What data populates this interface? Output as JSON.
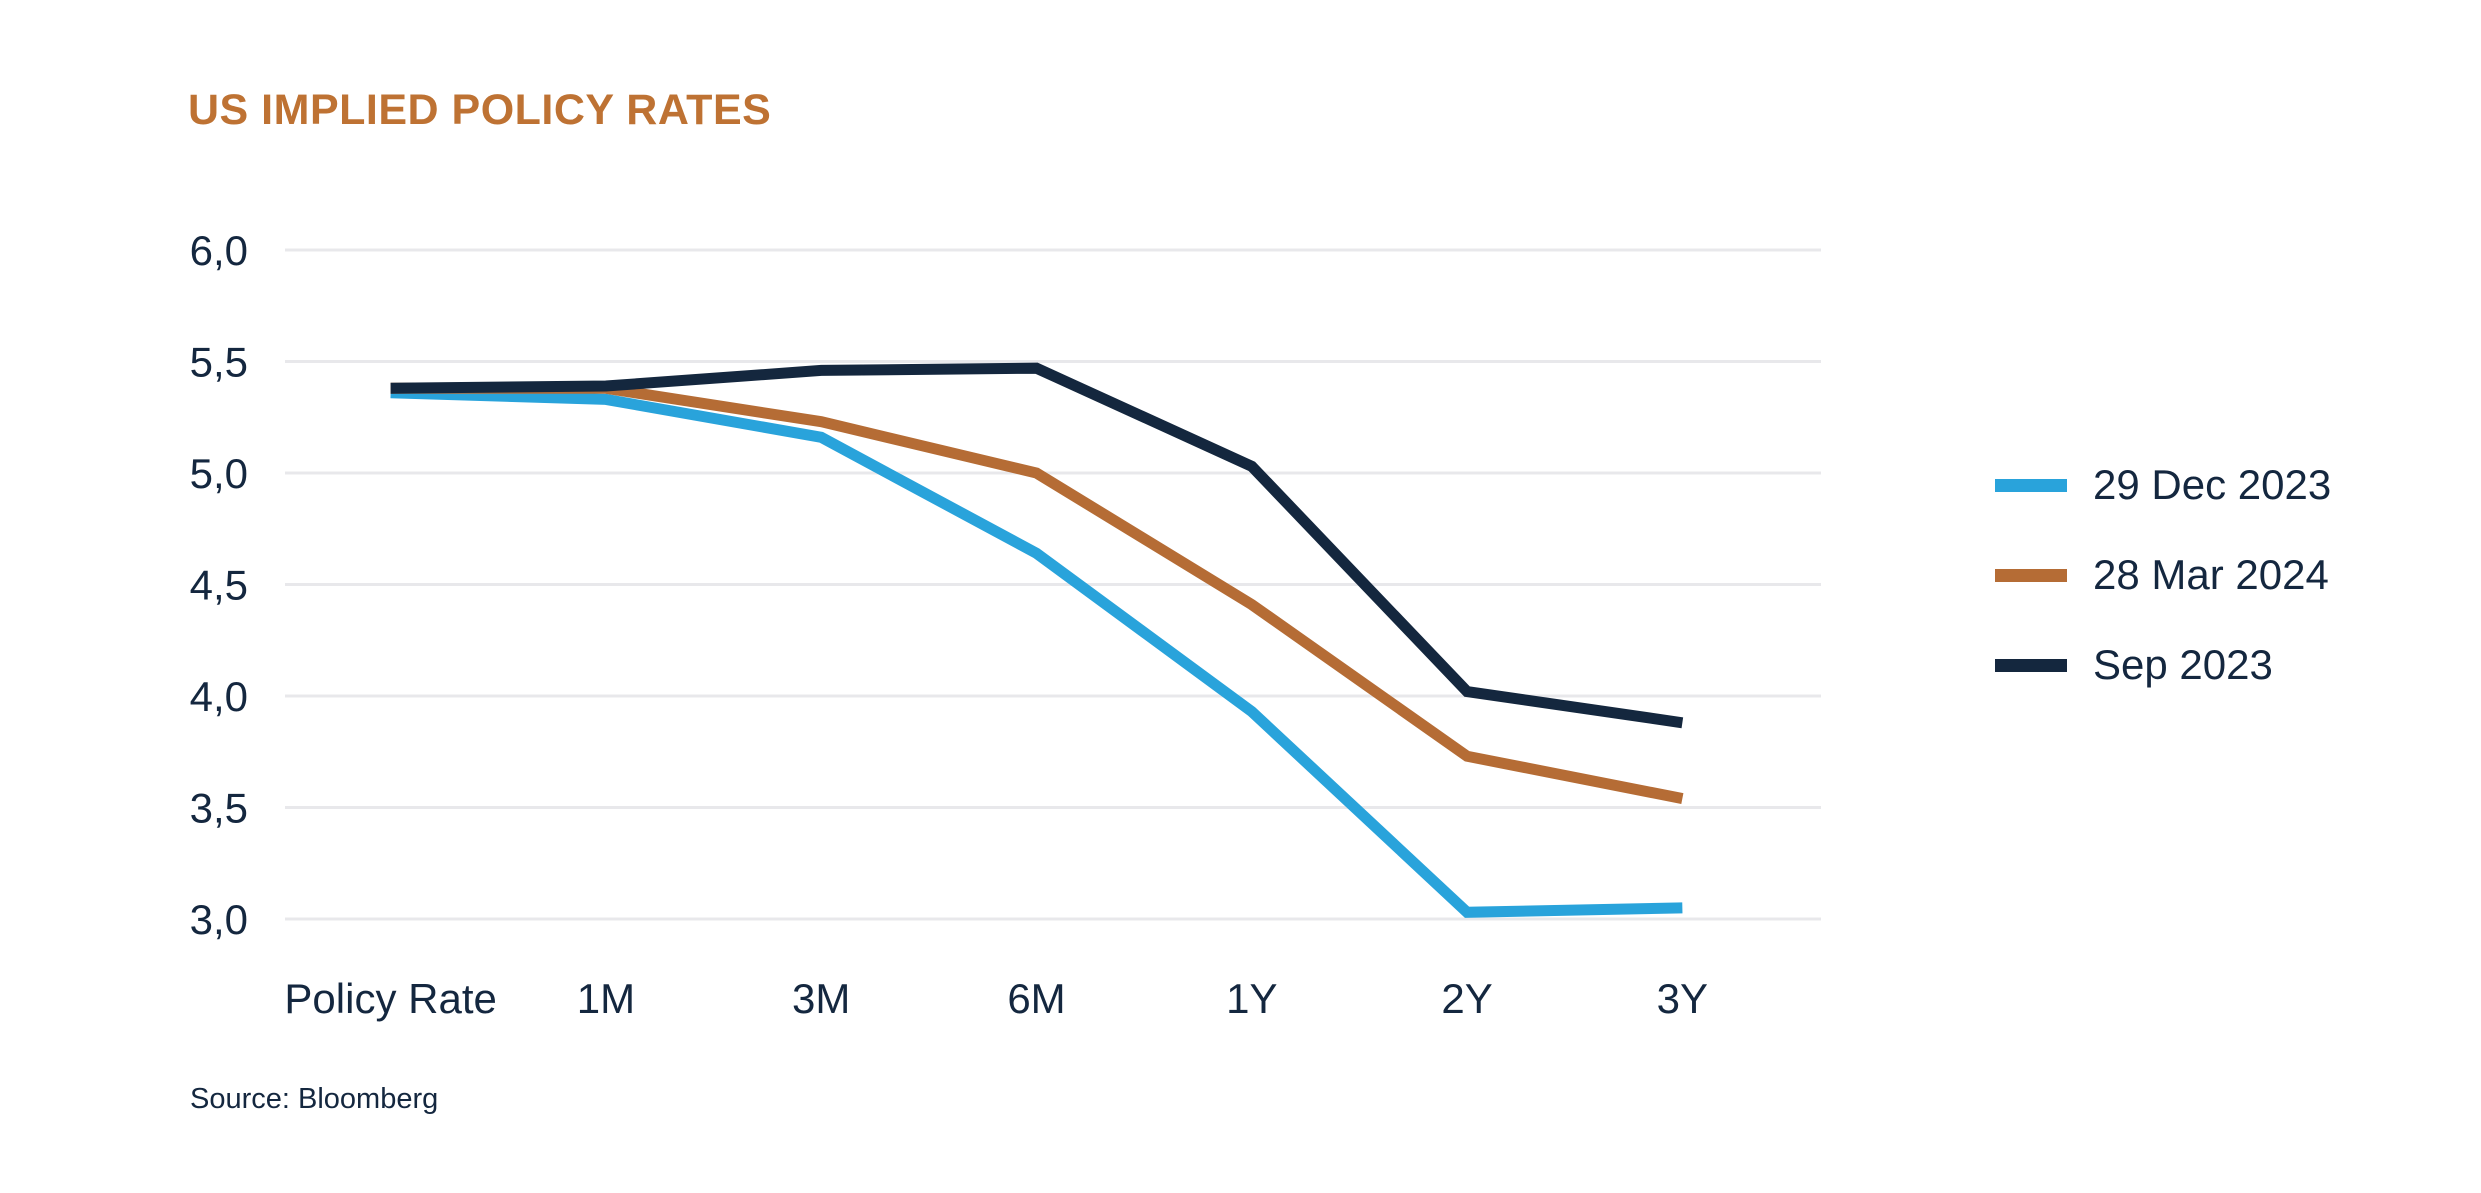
{
  "chart_data": {
    "type": "line",
    "title": "US IMPLIED POLICY RATES",
    "title_color": "#BE7233",
    "text_color": "#14273F",
    "grid_color": "#E8E8EB",
    "source": "Source: Bloomberg",
    "categories": [
      "Policy Rate",
      "1M",
      "3M",
      "6M",
      "1Y",
      "2Y",
      "3Y"
    ],
    "series": [
      {
        "name": "29 Dec 2023",
        "color": "#29A3DB",
        "values": [
          5.36,
          5.33,
          5.16,
          4.64,
          3.93,
          3.03,
          3.05
        ]
      },
      {
        "name": "28 Mar 2024",
        "color": "#B56C35",
        "values": [
          5.38,
          5.38,
          5.23,
          5.0,
          4.41,
          3.73,
          3.54
        ]
      },
      {
        "name": "Sep 2023",
        "color": "#14273E",
        "values": [
          5.38,
          5.39,
          5.46,
          5.47,
          5.03,
          4.02,
          3.88
        ]
      }
    ],
    "y_axis": {
      "min": 3.0,
      "max": 6.0,
      "step": 0.5,
      "ticks": [
        {
          "value": 6.0,
          "label": "6,0"
        },
        {
          "value": 5.5,
          "label": "5,5"
        },
        {
          "value": 5.0,
          "label": "5,0"
        },
        {
          "value": 4.5,
          "label": "4,5"
        },
        {
          "value": 4.0,
          "label": "4,0"
        },
        {
          "value": 3.5,
          "label": "3,5"
        },
        {
          "value": 3.0,
          "label": "3,0"
        }
      ]
    },
    "legend_position": "right",
    "grid": "horizontal-only"
  }
}
